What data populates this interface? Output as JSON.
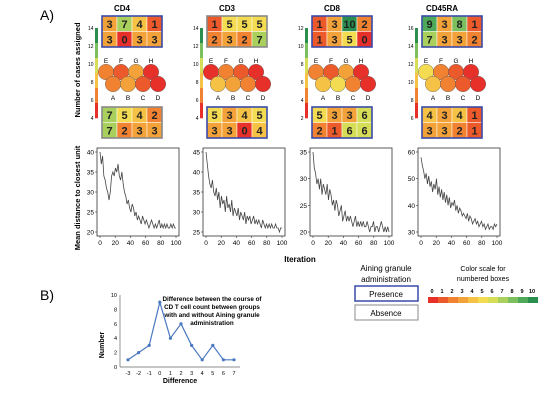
{
  "panel_labels": [
    "A)",
    "B)"
  ],
  "colors": {
    "scale": [
      "#e8302a",
      "#ec5a2c",
      "#f08232",
      "#f3a23a",
      "#f6c245",
      "#f3dc52",
      "#d6dd56",
      "#a9cf5c",
      "#7cbf5e",
      "#4ea958",
      "#2a8f4e"
    ],
    "presence_border": "#3a4aa8",
    "absence_border": "#888888"
  },
  "som_shared": {
    "y_axis_label": "Number of cases assigned",
    "circle_top_labels": [
      "E",
      "F",
      "G",
      "H"
    ],
    "circle_bottom_labels": [
      "A",
      "B",
      "C",
      "D"
    ]
  },
  "som_panels": [
    {
      "title": "CD4",
      "colorbar_ticks": [
        "14",
        "12",
        "10",
        "8",
        "6",
        "4"
      ],
      "top_rows": [
        [
          3,
          7,
          4,
          1
        ],
        [
          3,
          0,
          3,
          3
        ]
      ],
      "top_border": "presence",
      "bottom_rows": [
        [
          7,
          5,
          4,
          2
        ],
        [
          7,
          2,
          3,
          3
        ]
      ],
      "bottom_border": "absence",
      "top_circles": [
        "#f08232",
        "#ec5a2c",
        "#f3a23a",
        "#e8302a"
      ],
      "bottom_circles": [
        "#f08232",
        "#f3a23a",
        "#ec5a2c",
        "#e8302a"
      ]
    },
    {
      "title": "CD3",
      "colorbar_ticks": [
        "14",
        "12",
        "10",
        "8",
        "6",
        "4"
      ],
      "top_rows": [
        [
          1,
          5,
          5,
          5
        ],
        [
          2,
          3,
          2,
          7
        ]
      ],
      "top_border": "absence",
      "bottom_rows": [
        [
          5,
          3,
          4,
          5
        ],
        [
          3,
          3,
          0,
          4
        ]
      ],
      "bottom_border": "presence",
      "top_circles": [
        "#e8302a",
        "#f08232",
        "#ec5a2c",
        "#e8302a"
      ],
      "bottom_circles": [
        "#f6c245",
        "#f3a23a",
        "#f08232",
        "#e8302a"
      ]
    },
    {
      "title": "CD8",
      "colorbar_ticks": [
        "12",
        "10",
        "8",
        "6",
        "4",
        "2"
      ],
      "top_rows": [
        [
          1,
          3,
          10,
          2
        ],
        [
          1,
          3,
          5,
          0
        ]
      ],
      "top_border": "presence",
      "bottom_rows": [
        [
          5,
          3,
          3,
          6
        ],
        [
          2,
          1,
          6,
          6
        ]
      ],
      "bottom_border": "presence",
      "top_circles": [
        "#f08232",
        "#ec5a2c",
        "#f3a23a",
        "#e8302a"
      ],
      "bottom_circles": [
        "#f6c245",
        "#f3dc52",
        "#f08232",
        "#e8302a"
      ]
    },
    {
      "title": "CD45RA",
      "colorbar_ticks": [
        "16",
        "14",
        "12",
        "10",
        "8",
        "6"
      ],
      "top_rows": [
        [
          9,
          3,
          8,
          1
        ],
        [
          7,
          3,
          3,
          2
        ]
      ],
      "top_border": "presence",
      "bottom_rows": [
        [
          4,
          3,
          4,
          1
        ],
        [
          3,
          3,
          2,
          1
        ]
      ],
      "bottom_border": "presence",
      "top_circles": [
        "#f3dc52",
        "#f08232",
        "#ec5a2c",
        "#e8302a"
      ],
      "bottom_circles": [
        "#f6c245",
        "#f08232",
        "#ec5a2c",
        "#e8302a"
      ]
    }
  ],
  "line_shared": {
    "y_axis_label": "Mean distance to closest unit",
    "x_axis_label": "Iteration",
    "x_ticks": [
      0,
      20,
      40,
      60,
      80,
      100
    ]
  },
  "legend": {
    "title_line1": "Aining granule",
    "title_line2": "administration",
    "presence_label": "Presence",
    "absence_label": "Absence",
    "scale_title_line1": "Color scale for",
    "scale_title_line2": "numbered boxes",
    "scale_ticks": [
      "0",
      "1",
      "2",
      "3",
      "4",
      "5",
      "6",
      "7",
      "8",
      "9",
      "10"
    ]
  },
  "chart_data": [
    {
      "type": "line",
      "title": "CD4",
      "xlabel": "Iteration",
      "ylabel": "Mean distance to closest unit",
      "xlim": [
        0,
        100
      ],
      "ylim": [
        20,
        40
      ],
      "y_ticks": [
        20,
        25,
        30,
        35,
        40
      ],
      "series": [
        {
          "values": [
            40,
            37,
            39,
            34,
            33,
            31,
            30,
            28,
            30,
            34,
            35,
            34,
            36,
            35,
            37,
            34,
            33,
            35,
            32,
            30,
            29,
            27,
            28,
            26,
            25,
            27,
            26,
            24,
            25,
            23,
            24,
            23,
            22,
            24,
            23,
            22,
            23,
            22,
            21,
            22,
            23,
            22,
            21,
            22,
            21,
            22,
            23,
            21,
            22,
            21,
            22,
            21,
            22,
            21,
            21,
            22,
            21,
            22,
            21,
            21
          ]
        }
      ]
    },
    {
      "type": "line",
      "title": "CD3",
      "xlabel": "Iteration",
      "ylabel": "",
      "xlim": [
        0,
        100
      ],
      "ylim": [
        25,
        45
      ],
      "y_ticks": [
        25,
        30,
        35,
        40,
        45
      ],
      "series": [
        {
          "values": [
            45,
            42,
            39,
            37,
            36,
            38,
            35,
            34,
            36,
            33,
            35,
            31,
            34,
            32,
            33,
            30,
            34,
            31,
            32,
            30,
            33,
            29,
            31,
            30,
            29,
            31,
            28,
            30,
            29,
            28,
            30,
            27,
            29,
            28,
            29,
            27,
            28,
            29,
            27,
            28,
            27,
            28,
            27,
            26,
            28,
            27,
            26,
            27,
            26,
            27,
            26,
            27,
            26,
            26,
            27,
            26,
            26,
            25,
            26,
            26
          ]
        }
      ]
    },
    {
      "type": "line",
      "title": "CD8",
      "xlabel": "Iteration",
      "ylabel": "",
      "xlim": [
        0,
        100
      ],
      "ylim": [
        20,
        35
      ],
      "y_ticks": [
        20,
        25,
        30,
        35
      ],
      "series": [
        {
          "values": [
            35,
            32,
            31,
            29,
            30,
            28,
            30,
            27,
            29,
            28,
            27,
            29,
            26,
            28,
            27,
            25,
            26,
            24,
            26,
            25,
            23,
            24,
            25,
            22,
            23,
            24,
            22,
            23,
            22,
            23,
            22,
            21,
            22,
            23,
            21,
            22,
            21,
            22,
            21,
            22,
            21,
            21,
            22,
            21,
            20,
            21,
            21,
            22,
            20,
            21,
            21,
            20,
            21,
            22,
            21,
            20,
            21,
            20,
            21,
            20
          ]
        }
      ]
    },
    {
      "type": "line",
      "title": "CD45RA",
      "xlabel": "Iteration",
      "ylabel": "",
      "xlim": [
        0,
        100
      ],
      "ylim": [
        30,
        60
      ],
      "y_ticks": [
        30,
        40,
        50,
        60
      ],
      "series": [
        {
          "values": [
            58,
            55,
            53,
            50,
            52,
            48,
            51,
            47,
            49,
            45,
            48,
            46,
            50,
            44,
            47,
            43,
            46,
            42,
            45,
            41,
            44,
            40,
            43,
            39,
            41,
            40,
            42,
            38,
            40,
            37,
            39,
            38,
            36,
            37,
            36,
            35,
            37,
            34,
            36,
            35,
            33,
            34,
            35,
            33,
            34,
            32,
            33,
            34,
            32,
            33,
            31,
            32,
            33,
            31,
            32,
            32,
            31,
            33,
            32,
            33
          ]
        }
      ]
    },
    {
      "type": "line",
      "title": "Difference between the course of CD T cell count between groups with and without Aining granule administration",
      "xlabel": "Difference",
      "ylabel": "Number",
      "xlim": [
        -3,
        7
      ],
      "ylim": [
        0,
        10
      ],
      "y_ticks": [
        0,
        2,
        4,
        6,
        8,
        10
      ],
      "x_ticks": [
        "-3",
        "-2",
        "-1",
        "0",
        "1",
        "2",
        "3",
        "4",
        "5",
        "6",
        "7"
      ],
      "x": [
        -3,
        -2,
        -1,
        0,
        1,
        2,
        3,
        4,
        5,
        6,
        7
      ],
      "series": [
        {
          "values": [
            1,
            2,
            3,
            9,
            4,
            6,
            3,
            1,
            3,
            1,
            1
          ]
        }
      ]
    }
  ]
}
